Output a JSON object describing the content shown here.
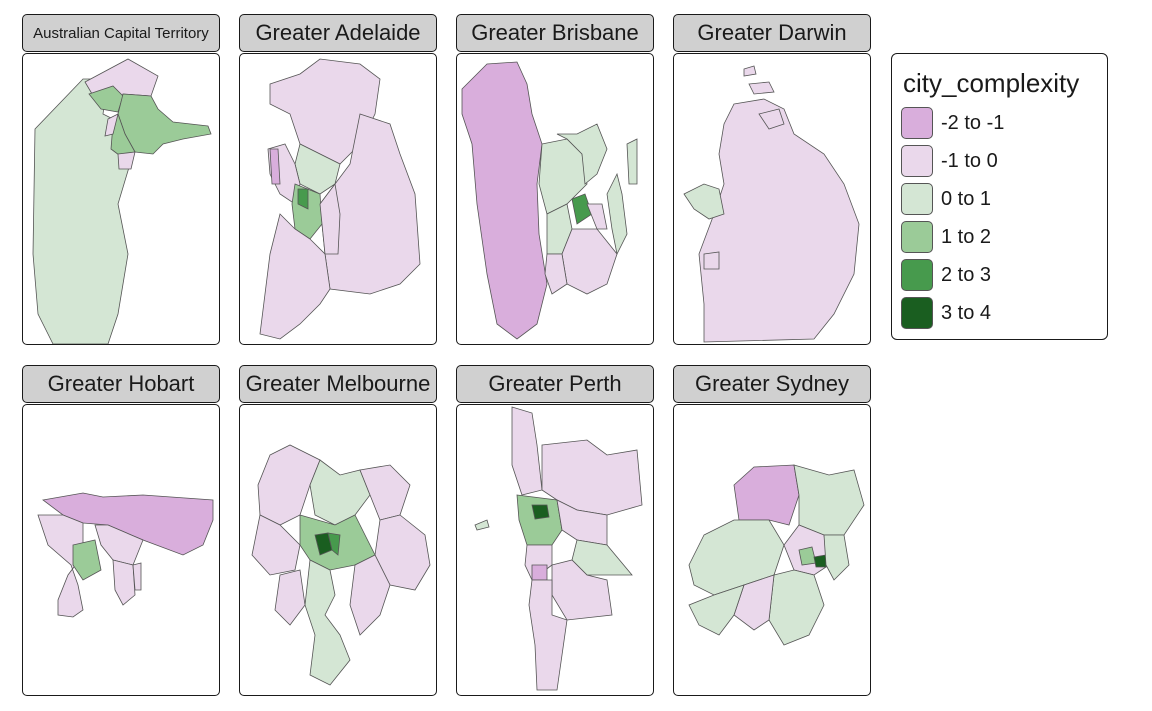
{
  "legend": {
    "title": "city_complexity",
    "items": [
      {
        "label": "-2 to -1",
        "color": "#d9aedc"
      },
      {
        "label": "-1 to 0",
        "color": "#ead8eb"
      },
      {
        "label": "0 to 1",
        "color": "#d4e6d4"
      },
      {
        "label": "1 to 2",
        "color": "#9bcb98"
      },
      {
        "label": "2 to 3",
        "color": "#479a4d"
      },
      {
        "label": "3 to 4",
        "color": "#1a5e20"
      }
    ]
  },
  "panels": [
    {
      "title": "Australian Capital Territory"
    },
    {
      "title": "Greater Adelaide"
    },
    {
      "title": "Greater Brisbane"
    },
    {
      "title": "Greater Darwin"
    },
    {
      "title": "Greater Hobart"
    },
    {
      "title": "Greater Melbourne"
    },
    {
      "title": "Greater Perth"
    },
    {
      "title": "Greater Sydney"
    }
  ]
}
